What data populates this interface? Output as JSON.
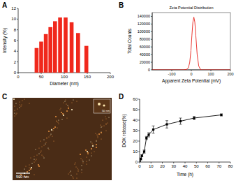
{
  "chart_data": [
    {
      "type": "bar",
      "panel": "A",
      "x_label": "Diameter (nm)",
      "y_label": "Intensity (%)",
      "x": [
        40,
        50,
        60,
        70,
        80,
        91,
        103,
        116,
        130,
        148
      ],
      "values": [
        4.6,
        5.8,
        7.2,
        8.5,
        9.6,
        10.3,
        10.3,
        9.4,
        7.4,
        5.0
      ],
      "color": "#f0281c",
      "xlim": [
        0,
        200
      ],
      "xticks": [
        0,
        50,
        100,
        150,
        200
      ],
      "ylim": [
        0,
        12
      ],
      "yticks": [
        0,
        2,
        4,
        6,
        8,
        10,
        12
      ]
    },
    {
      "type": "line",
      "panel": "B",
      "title": "Zeta Potential Distribution",
      "x_label": "Apparent Zeta Potential (mV)",
      "y_label": "Total Counts",
      "x": [
        -200,
        -40,
        -25,
        -15,
        -8,
        -2,
        3,
        8,
        13,
        18,
        23,
        30,
        38,
        48,
        200
      ],
      "values": [
        0,
        0,
        1000,
        5000,
        20000,
        50000,
        90000,
        125000,
        138000,
        125000,
        90000,
        40000,
        10000,
        0,
        0
      ],
      "color": "#e8201a",
      "xlim": [
        -200,
        200
      ],
      "xticks": [
        -100,
        0,
        100,
        200
      ],
      "ylim": [
        0,
        150000
      ],
      "yticks": [
        0,
        20000,
        40000,
        60000,
        80000,
        100000,
        120000,
        140000
      ]
    },
    {
      "type": "image",
      "panel": "C",
      "scale_bar": "500 nm",
      "inset_scale_bar": "50 nm"
    },
    {
      "type": "line",
      "panel": "D",
      "x_label": "Time (h)",
      "y_label": "DOX release(%)",
      "x": [
        0,
        1,
        2,
        4,
        6,
        8,
        12,
        24,
        36,
        48,
        72
      ],
      "values": [
        1,
        3,
        6,
        10,
        23,
        26,
        31,
        36,
        39,
        42,
        45
      ],
      "errors": [
        1,
        1,
        1,
        1.5,
        1.5,
        2,
        3.5,
        3.5,
        3,
        1.5,
        1
      ],
      "color": "#000000",
      "marker": "square",
      "xlim": [
        0,
        80
      ],
      "xticks": [
        0,
        10,
        20,
        30,
        40,
        50,
        60,
        70,
        80
      ],
      "ylim": [
        0,
        60
      ],
      "yticks": [
        0,
        10,
        20,
        30,
        40,
        50,
        60
      ]
    }
  ]
}
